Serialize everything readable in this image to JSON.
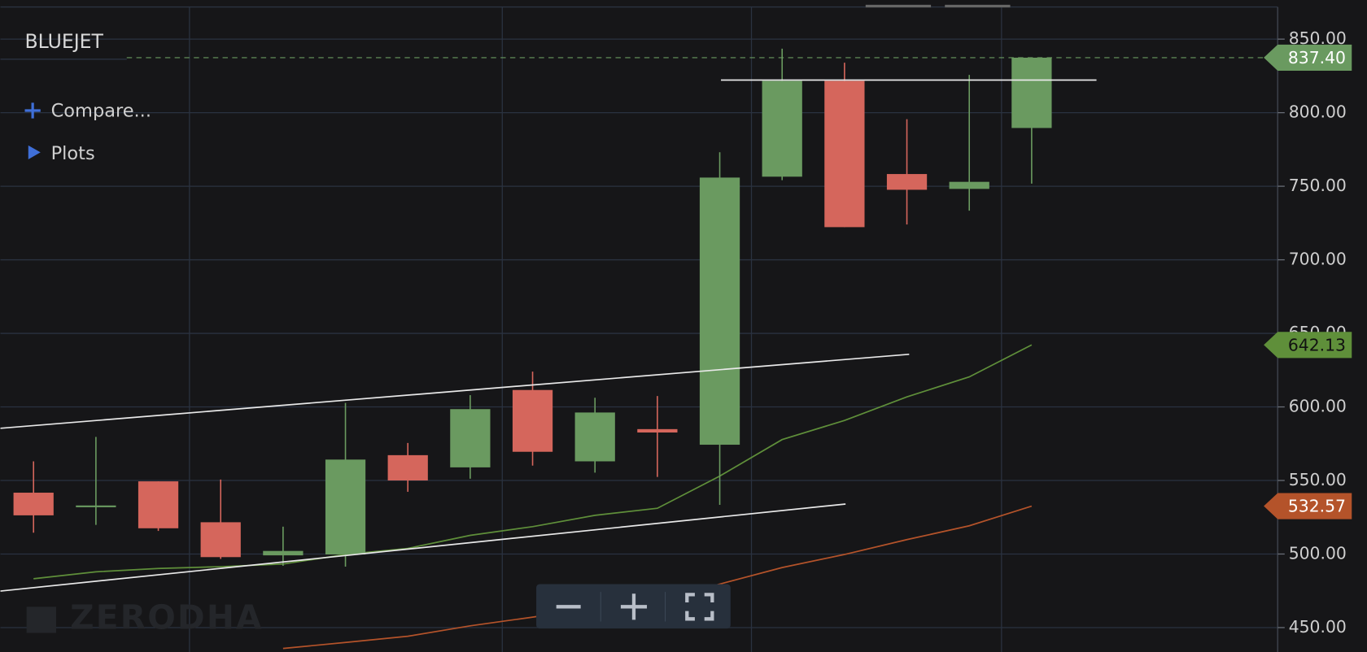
{
  "chart_data": {
    "type": "candlestick",
    "symbol": "BLUEJET",
    "menu": [
      "Compare...",
      "Plots"
    ],
    "watermark": "ZERODHA",
    "up_color": "#6a9a60",
    "down_color": "#d5665c",
    "candles": {
      "open": [
        541.7,
        532.5,
        549.4,
        521.6,
        499.1,
        499.7,
        567.2,
        558.9,
        611.5,
        563.0,
        584.9,
        574.3,
        756.5,
        821.6,
        758.3,
        748.2,
        789.6
      ],
      "high": [
        563.0,
        579.6,
        549.4,
        550.6,
        518.6,
        602.7,
        575.5,
        608.0,
        624.0,
        606.2,
        607.4,
        773.1,
        843.5,
        834.0,
        795.6,
        825.7,
        837.4
      ],
      "low": [
        514.5,
        519.8,
        515.7,
        496.7,
        492.0,
        491.4,
        542.3,
        551.2,
        560.1,
        555.3,
        552.4,
        533.4,
        754.1,
        722.2,
        724.0,
        733.4,
        751.8
      ],
      "close": [
        526.3,
        533.0,
        517.5,
        497.9,
        502.1,
        564.2,
        550.0,
        598.5,
        569.5,
        596.2,
        582.6,
        755.9,
        821.6,
        722.2,
        747.6,
        753.0,
        837.4
      ],
      "last_close_label": "837.40"
    },
    "moving_averages": [
      {
        "color": "#5f8f3a",
        "values": [
          483.2,
          487.9,
          490.2,
          491.4,
          493.2,
          499.7,
          503.8,
          512.7,
          518.6,
          526.3,
          531.1,
          553.0,
          577.8,
          590.8,
          606.8,
          620.4,
          642.13
        ]
      },
      {
        "color": "#b4532a",
        "values": [
          null,
          null,
          null,
          null,
          435.8,
          439.9,
          444.1,
          451.2,
          457.1,
          463.6,
          468.3,
          479.6,
          490.8,
          499.7,
          509.8,
          519.2,
          532.57
        ]
      }
    ],
    "ylim": [
      433.4,
      876.6
    ],
    "yticks": [
      {
        "value": 450,
        "label": "450.00"
      },
      {
        "value": 500,
        "label": "500.00"
      },
      {
        "value": 550,
        "label": "550.00"
      },
      {
        "value": 600,
        "label": "600.00"
      },
      {
        "value": 650,
        "label": "650.00"
      },
      {
        "value": 700,
        "label": "700.00"
      },
      {
        "value": 750,
        "label": "750.00"
      },
      {
        "value": 800,
        "label": "800.00"
      },
      {
        "value": 850,
        "label": "850.00"
      }
    ],
    "grid": true
  }
}
